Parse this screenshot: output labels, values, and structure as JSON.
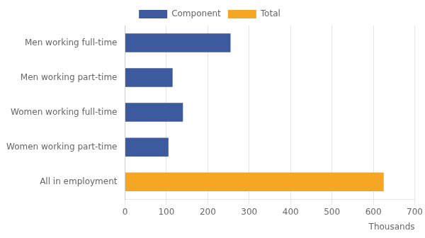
{
  "chart_data": {
    "type": "bar",
    "orientation": "horizontal",
    "categories": [
      "Men working full-time",
      "Men working part-time",
      "Women working full-time",
      "Women working part-time",
      "All in employment"
    ],
    "series": [
      {
        "name": "Component",
        "color": "#3d5a9e",
        "values": [
          255,
          115,
          140,
          105,
          null
        ]
      },
      {
        "name": "Total",
        "color": "#f5a623",
        "values": [
          null,
          null,
          null,
          null,
          625
        ]
      }
    ],
    "xlim": [
      0,
      700
    ],
    "xticks": [
      0,
      100,
      200,
      300,
      400,
      500,
      600,
      700
    ],
    "xlabel": "Thousands",
    "grid": true,
    "legend": "top"
  }
}
